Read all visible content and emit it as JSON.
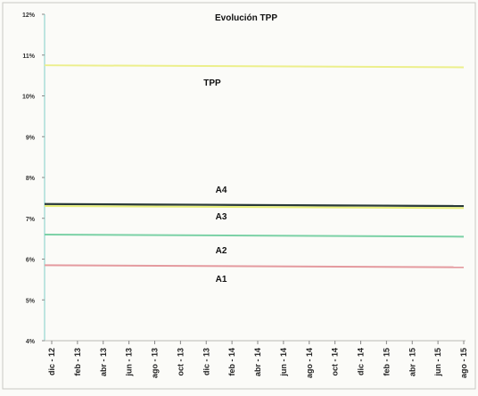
{
  "chart_data": {
    "type": "line",
    "title": "Evolución TPP",
    "xlabel": "",
    "ylabel": "",
    "y_ticks": [
      "4%",
      "5%",
      "6%",
      "7%",
      "8%",
      "9%",
      "10%",
      "11%",
      "12%"
    ],
    "ylim": [
      4,
      12
    ],
    "x_ticks": [
      "dic - 12",
      "feb - 13",
      "abr - 13",
      "jun - 13",
      "ago - 13",
      "oct - 13",
      "dic - 13",
      "feb - 14",
      "abr - 14",
      "jun - 14",
      "ago - 14",
      "oct - 14",
      "dic - 14",
      "feb - 15",
      "abr - 15",
      "jun - 15",
      "ago - 15"
    ],
    "grid": false,
    "series": [
      {
        "name": "TPP",
        "color": "#ecef8c",
        "start": 10.75,
        "end": 10.7
      },
      {
        "name": "A4",
        "color": "#2a3a3a",
        "start": 7.35,
        "end": 7.3
      },
      {
        "name": "A3",
        "color": "#e8ef7a",
        "start": 7.3,
        "end": 7.25
      },
      {
        "name": "A2",
        "color": "#7bd1a6",
        "start": 6.6,
        "end": 6.55
      },
      {
        "name": "A1",
        "color": "#e49a9f",
        "start": 5.85,
        "end": 5.8
      }
    ]
  }
}
